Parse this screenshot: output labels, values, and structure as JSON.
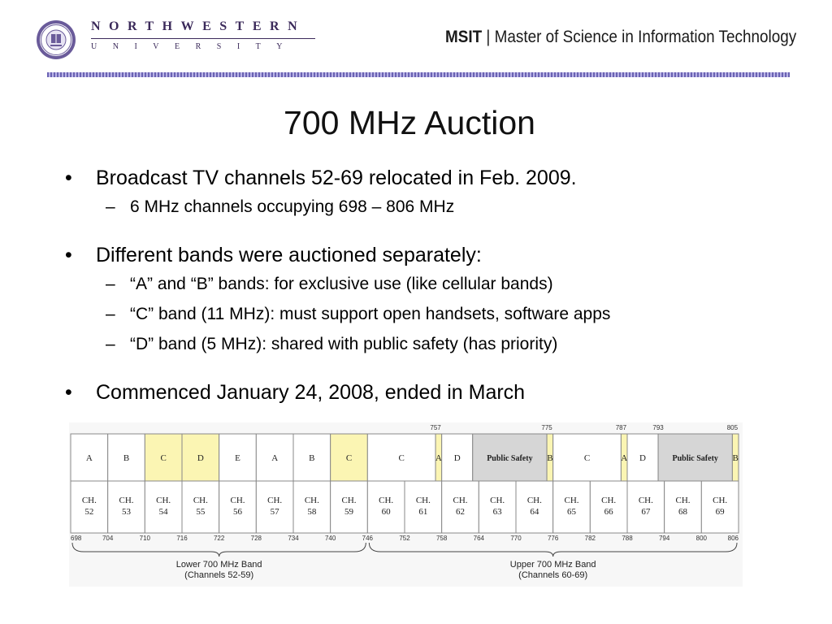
{
  "header": {
    "logo_top": "NORTHWESTERN",
    "logo_bottom": "UNIVERSITY",
    "program_abbr": "MSIT",
    "separator": "|",
    "program_name": "Master of Science in Information Technology"
  },
  "slide": {
    "title": "700 MHz Auction",
    "bullets": [
      {
        "text": "Broadcast TV channels 52-69 relocated in Feb. 2009.",
        "subs": [
          "6 MHz channels occupying 698 – 806 MHz"
        ]
      },
      {
        "text": "Different bands were auctioned separately:",
        "subs": [
          "“A” and “B” bands: for exclusive use (like cellular bands)",
          "“C” band (11 MHz): must support open handsets, software apps",
          "“D” band (5 MHz): shared with public safety (has priority)"
        ]
      },
      {
        "text": "Commenced January 24, 2008, ended in March",
        "subs": []
      }
    ],
    "bullet_mark": "•",
    "sub_mark": "–"
  },
  "chart_data": {
    "type": "table",
    "freq_range_mhz": [
      698,
      806
    ],
    "bands": [
      {
        "label": "A",
        "start": 698,
        "end": 704,
        "highlight": false
      },
      {
        "label": "B",
        "start": 704,
        "end": 710,
        "highlight": false
      },
      {
        "label": "C",
        "start": 710,
        "end": 716,
        "highlight": true
      },
      {
        "label": "D",
        "start": 716,
        "end": 722,
        "highlight": true
      },
      {
        "label": "E",
        "start": 722,
        "end": 728,
        "highlight": false
      },
      {
        "label": "A",
        "start": 728,
        "end": 734,
        "highlight": false
      },
      {
        "label": "B",
        "start": 734,
        "end": 740,
        "highlight": false
      },
      {
        "label": "C",
        "start": 740,
        "end": 746,
        "highlight": true
      },
      {
        "label": "C",
        "start": 746,
        "end": 757,
        "highlight": false
      },
      {
        "label": "A",
        "start": 757,
        "end": 758,
        "highlight": true
      },
      {
        "label": "D",
        "start": 758,
        "end": 763,
        "highlight": false
      },
      {
        "label": "Public Safety",
        "start": 763,
        "end": 775,
        "highlight": "gray"
      },
      {
        "label": "B",
        "start": 775,
        "end": 776,
        "highlight": true
      },
      {
        "label": "C",
        "start": 776,
        "end": 787,
        "highlight": false
      },
      {
        "label": "A",
        "start": 787,
        "end": 788,
        "highlight": true
      },
      {
        "label": "D",
        "start": 788,
        "end": 793,
        "highlight": false
      },
      {
        "label": "Public Safety",
        "start": 793,
        "end": 805,
        "highlight": "gray"
      },
      {
        "label": "B",
        "start": 805,
        "end": 806,
        "highlight": true
      }
    ],
    "channels": [
      {
        "label": "CH.",
        "num": "52",
        "start": 698,
        "end": 704
      },
      {
        "label": "CH.",
        "num": "53",
        "start": 704,
        "end": 710
      },
      {
        "label": "CH.",
        "num": "54",
        "start": 710,
        "end": 716
      },
      {
        "label": "CH.",
        "num": "55",
        "start": 716,
        "end": 722
      },
      {
        "label": "CH.",
        "num": "56",
        "start": 722,
        "end": 728
      },
      {
        "label": "CH.",
        "num": "57",
        "start": 728,
        "end": 734
      },
      {
        "label": "CH.",
        "num": "58",
        "start": 734,
        "end": 740
      },
      {
        "label": "CH.",
        "num": "59",
        "start": 740,
        "end": 746
      },
      {
        "label": "CH.",
        "num": "60",
        "start": 746,
        "end": 752
      },
      {
        "label": "CH.",
        "num": "61",
        "start": 752,
        "end": 758
      },
      {
        "label": "CH.",
        "num": "62",
        "start": 758,
        "end": 764
      },
      {
        "label": "CH.",
        "num": "63",
        "start": 764,
        "end": 770
      },
      {
        "label": "CH.",
        "num": "64",
        "start": 770,
        "end": 776
      },
      {
        "label": "CH.",
        "num": "65",
        "start": 776,
        "end": 782
      },
      {
        "label": "CH.",
        "num": "66",
        "start": 782,
        "end": 788
      },
      {
        "label": "CH.",
        "num": "67",
        "start": 788,
        "end": 794
      },
      {
        "label": "CH.",
        "num": "68",
        "start": 794,
        "end": 800
      },
      {
        "label": "CH.",
        "num": "69",
        "start": 800,
        "end": 806
      }
    ],
    "bottom_ticks": [
      698,
      704,
      710,
      716,
      722,
      728,
      734,
      740,
      746,
      752,
      758,
      764,
      770,
      776,
      782,
      788,
      794,
      800,
      806
    ],
    "top_ticks": [
      757,
      775,
      787,
      793,
      805
    ],
    "groups": [
      {
        "line1": "Lower 700 MHz Band",
        "line2": "(Channels 52-59)",
        "start": 698,
        "end": 746
      },
      {
        "line1": "Upper 700 MHz Band",
        "line2": "(Channels 60-69)",
        "start": 746,
        "end": 806
      }
    ],
    "colors": {
      "yellow": "#fbf5b3",
      "gray": "#d6d6d6",
      "white": "#ffffff",
      "line": "#888888"
    }
  }
}
